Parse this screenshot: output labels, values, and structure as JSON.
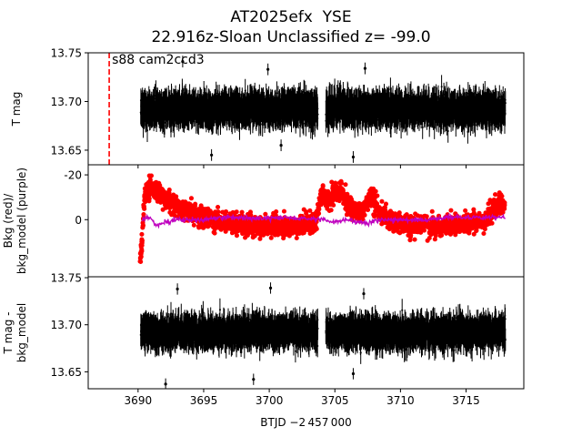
{
  "title": [
    "AT2025efx  YSE",
    "22.916z-Sloan Unclassified z= -99.0"
  ],
  "xlabel": "BTJD −2 457 000",
  "annotation": "s88 cam2ccd3",
  "chart_data": [
    {
      "panel": "top",
      "type": "scatter",
      "ylabel": "T mag",
      "ylim": [
        13.75,
        13.635
      ],
      "yticks": [
        13.65,
        13.7,
        13.75
      ],
      "xlim": [
        3686.2,
        3719.4
      ],
      "xticks": [
        3690,
        3695,
        3700,
        3705,
        3710,
        3715
      ],
      "marker_color": "#000000",
      "error_bars": true,
      "vline": {
        "x": 3687.8,
        "color": "#ff0000",
        "style": "dashed"
      },
      "series": [
        {
          "x_range": [
            3690.2,
            3718.0
          ],
          "gap": [
            3703.7,
            3704.3
          ],
          "y_center": 13.692,
          "scatter": 0.012,
          "errorbar_halfwidth": 0.012,
          "outliers": [
            [
              3695.6,
              13.645
            ],
            [
              3700.9,
              13.655
            ],
            [
              3706.4,
              13.643
            ],
            [
              3693.4,
              13.741
            ],
            [
              3699.9,
              13.733
            ],
            [
              3707.3,
              13.734
            ]
          ]
        }
      ]
    },
    {
      "panel": "middle",
      "type": "scatter",
      "ylabel": [
        "Bkg (red)/",
        "bkg_model (purple)"
      ],
      "ylim": [
        -24.5,
        25.5
      ],
      "yticks": [
        -20,
        0
      ],
      "xlim": [
        3686.2,
        3719.4
      ],
      "series": [
        {
          "name": "Bkg",
          "color": "#ff0000",
          "trend": [
            [
              3690.15,
              19
            ],
            [
              3690.3,
              10
            ],
            [
              3690.5,
              -12
            ],
            [
              3691.0,
              -15
            ],
            [
              3692.0,
              -10
            ],
            [
              3693.0,
              -5
            ],
            [
              3694.5,
              -2
            ],
            [
              3696.0,
              1
            ],
            [
              3698.0,
              2
            ],
            [
              3700.0,
              3
            ],
            [
              3702.0,
              2.5
            ],
            [
              3703.5,
              1
            ],
            [
              3704.0,
              -12
            ],
            [
              3704.5,
              -8
            ],
            [
              3705.0,
              -12
            ],
            [
              3705.5,
              -14
            ],
            [
              3706.0,
              -6
            ],
            [
              3707.0,
              -3
            ],
            [
              3707.8,
              -11
            ],
            [
              3708.5,
              -2
            ],
            [
              3709.5,
              1
            ],
            [
              3711.0,
              3
            ],
            [
              3713.0,
              3
            ],
            [
              3715.0,
              2
            ],
            [
              3716.5,
              0
            ],
            [
              3717.2,
              -6
            ],
            [
              3717.9,
              -8
            ]
          ]
        },
        {
          "name": "bkg_model",
          "color": "#bf00bf",
          "values": [
            [
              3690.3,
              0
            ],
            [
              3690.8,
              -1
            ],
            [
              3691.2,
              1
            ],
            [
              3691.5,
              3
            ],
            [
              3692.0,
              1
            ],
            [
              3693.0,
              0
            ],
            [
              3695.0,
              0
            ],
            [
              3697.0,
              -1
            ],
            [
              3699.0,
              -0.5
            ],
            [
              3701.0,
              -1
            ],
            [
              3703.0,
              -0.5
            ],
            [
              3704.0,
              0
            ],
            [
              3705.0,
              1
            ],
            [
              3706.0,
              0
            ],
            [
              3707.0,
              1
            ],
            [
              3707.5,
              2
            ],
            [
              3708.0,
              0
            ],
            [
              3710.0,
              0
            ],
            [
              3712.0,
              0
            ],
            [
              3714.0,
              -1
            ],
            [
              3716.0,
              -1
            ],
            [
              3718.0,
              -1
            ]
          ]
        }
      ]
    },
    {
      "panel": "bottom",
      "type": "scatter",
      "ylabel": [
        "T mag -",
        "bkg_model"
      ],
      "ylim": [
        13.751,
        13.632
      ],
      "yticks": [
        13.65,
        13.7,
        13.75
      ],
      "xlim": [
        3686.2,
        3719.4
      ],
      "xticks": [
        3690,
        3695,
        3700,
        3705,
        3710,
        3715
      ],
      "marker_color": "#000000",
      "error_bars": true,
      "series": [
        {
          "x_range": [
            3690.2,
            3718.0
          ],
          "gap": [
            3703.7,
            3704.3
          ],
          "y_center": 13.692,
          "scatter": 0.012,
          "errorbar_halfwidth": 0.012,
          "outliers": [
            [
              3692.1,
              13.637
            ],
            [
              3698.8,
              13.642
            ],
            [
              3706.4,
              13.648
            ],
            [
              3693.0,
              13.738
            ],
            [
              3700.1,
              13.739
            ],
            [
              3707.2,
              13.733
            ]
          ]
        }
      ]
    }
  ]
}
